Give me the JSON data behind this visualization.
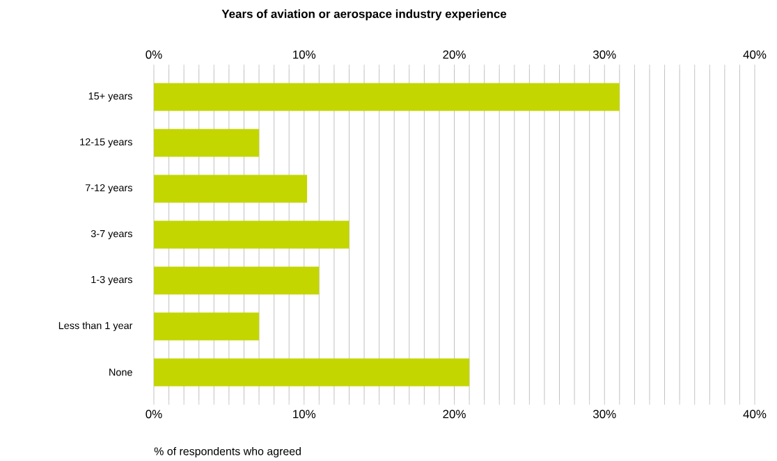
{
  "chart_data": {
    "type": "bar",
    "orientation": "horizontal",
    "title": "Years of aviation or aerospace industry experience",
    "xlabel": "% of respondents who agreed",
    "categories": [
      "15+ years",
      "12-15 years",
      "7-12 years",
      "3-7 years",
      "1-3 years",
      "Less than 1 year",
      "None"
    ],
    "values": [
      31,
      7,
      10.2,
      13,
      11,
      7,
      21
    ],
    "color": "#c3d600",
    "xlim": [
      0,
      40
    ],
    "xticks": [
      {
        "value": 0,
        "label": "0%"
      },
      {
        "value": 1,
        "label": null
      },
      {
        "value": 2,
        "label": null
      },
      {
        "value": 3,
        "label": null
      },
      {
        "value": 4,
        "label": null
      },
      {
        "value": 5,
        "label": null
      },
      {
        "value": 6,
        "label": null
      },
      {
        "value": 7,
        "label": null
      },
      {
        "value": 8,
        "label": null
      },
      {
        "value": 9,
        "label": null
      },
      {
        "value": 10,
        "label": "10%"
      },
      {
        "value": 11,
        "label": null
      },
      {
        "value": 12,
        "label": null
      },
      {
        "value": 13,
        "label": null
      },
      {
        "value": 14,
        "label": null
      },
      {
        "value": 15,
        "label": null
      },
      {
        "value": 16,
        "label": null
      },
      {
        "value": 17,
        "label": null
      },
      {
        "value": 18,
        "label": null
      },
      {
        "value": 19,
        "label": null
      },
      {
        "value": 20,
        "label": "20%"
      },
      {
        "value": 21,
        "label": null
      },
      {
        "value": 22,
        "label": null
      },
      {
        "value": 23,
        "label": null
      },
      {
        "value": 24,
        "label": null
      },
      {
        "value": 25,
        "label": null
      },
      {
        "value": 26,
        "label": null
      },
      {
        "value": 27,
        "label": null
      },
      {
        "value": 28,
        "label": null
      },
      {
        "value": 29,
        "label": null
      },
      {
        "value": 30,
        "label": "30%"
      },
      {
        "value": 31,
        "label": null
      },
      {
        "value": 32,
        "label": null
      },
      {
        "value": 33,
        "label": null
      },
      {
        "value": 34,
        "label": null
      },
      {
        "value": 35,
        "label": null
      },
      {
        "value": 36,
        "label": null
      },
      {
        "value": 37,
        "label": null
      },
      {
        "value": 38,
        "label": null
      },
      {
        "value": 39,
        "label": null
      },
      {
        "value": 40,
        "label": "40%"
      }
    ],
    "x2lim": [
      0,
      40
    ],
    "x2ticks": [
      {
        "value": 0,
        "label": "0%"
      },
      {
        "value": 10,
        "label": "10%"
      },
      {
        "value": 20,
        "label": "20%"
      },
      {
        "value": 30,
        "label": "30%"
      },
      {
        "value": 40,
        "label": "40%"
      }
    ],
    "grid": "x"
  }
}
